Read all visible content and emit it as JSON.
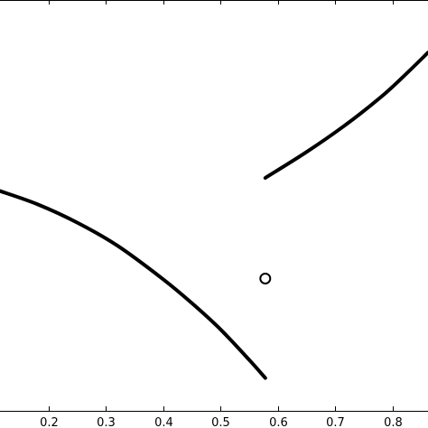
{
  "chart_data": {
    "type": "line",
    "title": "",
    "xlabel": "",
    "ylabel": "",
    "xlim": [
      0.115,
      0.862
    ],
    "ylim": [
      0.0,
      1.0
    ],
    "x_ticks": [
      0.2,
      0.3,
      0.4,
      0.5,
      0.6,
      0.7,
      0.8
    ],
    "x_tick_labels": [
      "0.2",
      "0.3",
      "0.4",
      "0.5",
      "0.6",
      "0.7",
      "0.8"
    ],
    "grid": false,
    "legend": "none",
    "series": [
      {
        "x": [
          0.115,
          0.18,
          0.25,
          0.32,
          0.4,
          0.45,
          0.5,
          0.55,
          0.578
        ],
        "y": [
          0.535,
          0.503,
          0.458,
          0.402,
          0.32,
          0.262,
          0.198,
          0.124,
          0.08
        ]
      },
      {
        "x": [
          0.578,
          0.65,
          0.72,
          0.78,
          0.82,
          0.862
        ],
        "y": [
          0.567,
          0.63,
          0.698,
          0.764,
          0.815,
          0.872
        ]
      }
    ],
    "markers": [
      {
        "x": 0.578,
        "y": 0.322,
        "style": "open-circle"
      }
    ],
    "colors": {
      "line": "#000000",
      "axes": "#000000",
      "background": "#ffffff"
    }
  }
}
